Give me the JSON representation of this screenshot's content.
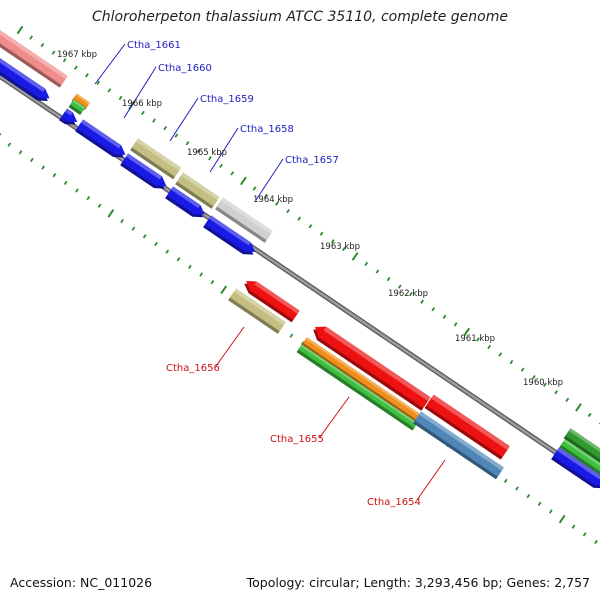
{
  "title": "Chloroherpeton thalassium ATCC 35110, complete genome",
  "footer": {
    "accession": "Accession: NC_011026",
    "summary": "Topology: circular; Length: 3,293,456 bp; Genes: 2,757"
  },
  "colors": {
    "backbone": "#8a8a8a",
    "tick": "#2f8a2f",
    "forward_label": "#1f1fbf",
    "reverse_label": "#cc1111",
    "cds_forward": "#1a1ae6",
    "cds_reverse": "#ee1111",
    "gene_olive": "#c4be82",
    "gene_gray": "#cfcfcf",
    "gene_salmon": "#ef8c8c",
    "gene_orange": "#f0901c",
    "gene_green": "#3fbf3f",
    "gene_steel": "#4f86b8",
    "gene_darkgreen": "#2f9a2f"
  },
  "kbp_markers": [
    "1967 kbp",
    "1966 kbp",
    "1965 kbp",
    "1964 kbp",
    "1963 kbp",
    "1962 kbp",
    "1961 kbp",
    "1960 kbp"
  ],
  "gene_labels": {
    "forward": [
      "Ctha_1661",
      "Ctha_1660",
      "Ctha_1659",
      "Ctha_1658",
      "Ctha_1657"
    ],
    "reverse": [
      "Ctha_1656",
      "Ctha_1655",
      "Ctha_1654"
    ]
  }
}
